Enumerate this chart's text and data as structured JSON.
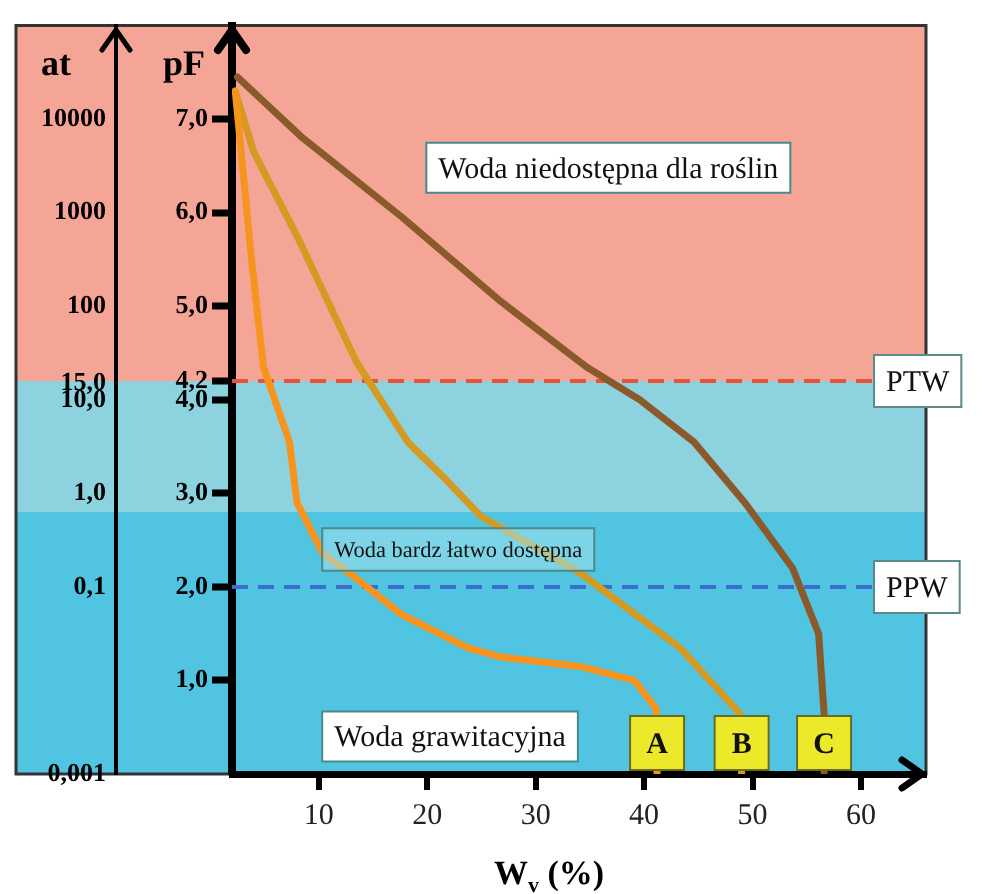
{
  "chart_data": {
    "type": "line",
    "xlabel": "W$_{v}$ (%)",
    "ylabel": "pF",
    "y2label": "at",
    "xlim": [
      2,
      66
    ],
    "xticks": [
      10,
      20,
      30,
      40,
      50,
      60
    ],
    "ylim": [
      0,
      8
    ],
    "yticks": [
      {
        "value": 1,
        "label": "1,0"
      },
      {
        "value": 2,
        "label": "2,0"
      },
      {
        "value": 3,
        "label": "3,0"
      },
      {
        "value": 4,
        "label": "4,0"
      },
      {
        "value": 4.2,
        "label": "4,2"
      },
      {
        "value": 5,
        "label": "5,0"
      },
      {
        "value": 6,
        "label": "6,0"
      },
      {
        "value": 7,
        "label": "7,0"
      }
    ],
    "y2lim": [
      0.001,
      100000
    ],
    "y2ticks": [
      {
        "value": 0.001,
        "label": "0,001"
      },
      {
        "value": 0.1,
        "label": "0,1"
      },
      {
        "value": 1,
        "label": "1,0"
      },
      {
        "value": 10,
        "label": "10,0"
      },
      {
        "value": 15,
        "label": "15,0"
      },
      100,
      1000,
      10000
    ],
    "log": "y2",
    "series": [
      {
        "name": "A",
        "color": "#f7941d",
        "x": [
          2.3,
          3.8,
          4.9,
          7.3,
          8,
          10.4,
          12.8,
          17.7,
          23.7,
          26.8,
          34.1,
          39.1,
          41.1,
          41.2
        ],
        "values": [
          7.3,
          5.5,
          4.35,
          3.55,
          2.9,
          2.35,
          2.15,
          1.7,
          1.35,
          1.25,
          1.15,
          1,
          0.7,
          0
        ]
      },
      {
        "name": "B",
        "color": "#d49a22",
        "x": [
          2.3,
          4,
          8,
          13.5,
          18.2,
          21.7,
          25,
          34.1,
          43.3,
          48.8,
          49
        ],
        "values": [
          7.3,
          6.65,
          5.75,
          4.4,
          3.55,
          3.15,
          2.75,
          2.15,
          1.35,
          0.65,
          0
        ]
      },
      {
        "name": "C",
        "color": "#8b5a2b",
        "x": [
          2.5,
          8.5,
          17.7,
          26.8,
          34.7,
          39.6,
          44.6,
          49.3,
          53.7,
          56.1,
          56.6,
          56.6
        ],
        "values": [
          7.45,
          6.8,
          5.95,
          5.05,
          4.35,
          4,
          3.55,
          2.9,
          2.2,
          1.5,
          0.65,
          0
        ]
      }
    ],
    "ref_lines": [
      {
        "axis": "y",
        "value": 4.2,
        "label": "PTW",
        "color": "#e8533a",
        "line_style": "dashed"
      },
      {
        "axis": "y",
        "value": 2,
        "label": "PPW",
        "color": "#3a6fd0",
        "line_style": "dashed"
      }
    ],
    "bands": [
      {
        "axis": "y",
        "from": 4.2,
        "to": 8,
        "label": "Woda niedostępna dla roślin",
        "color": "#f4a595"
      },
      {
        "axis": "y",
        "from": 2.8,
        "to": 4.2,
        "color": "#8cd3df"
      },
      {
        "axis": "y",
        "from": 2,
        "to": 2.8,
        "label": "Woda bardz łatwo dostępna",
        "color": "#50c4e0"
      },
      {
        "axis": "y",
        "from": 0,
        "to": 2,
        "label": "Woda grawitacyjna",
        "color": "#50c4e0"
      }
    ],
    "grid": false,
    "legend": false,
    "marker": "none",
    "line_style": "solid"
  }
}
